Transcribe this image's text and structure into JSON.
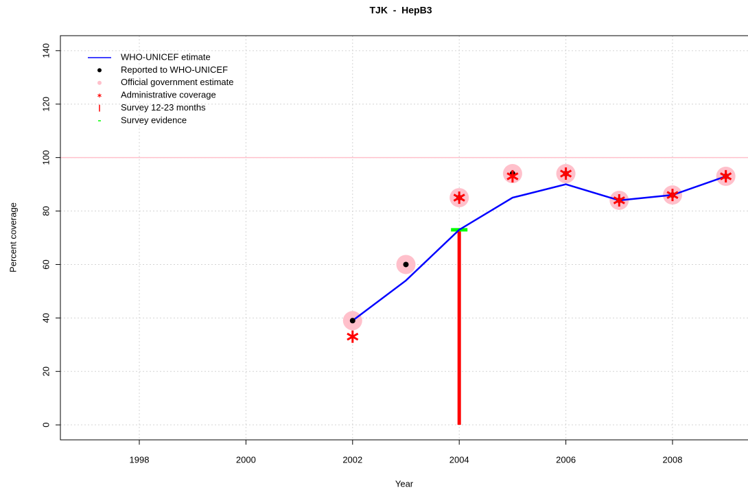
{
  "chart_data": {
    "type": "line",
    "title": "TJK  -  HepB3",
    "x_label": "Year",
    "y_label": "Percent coverage",
    "x": [
      2002,
      2003,
      2004,
      2005,
      2006,
      2007,
      2008,
      2009
    ],
    "xlim": [
      1996.52,
      2009.48
    ],
    "xticks": [
      1998,
      2000,
      2002,
      2004,
      2006,
      2008
    ],
    "ylim": [
      -5.6,
      145.6
    ],
    "yticks": [
      0,
      20,
      40,
      60,
      80,
      100,
      120,
      140
    ],
    "grid": true,
    "legend": "top-left",
    "reference_line": {
      "value": 100,
      "color": "#ffc0cb"
    },
    "series": [
      {
        "name": "Official government estimate",
        "color": "#ffc0cb",
        "mark": "circle",
        "values": [
          39,
          60,
          85,
          94,
          94,
          84,
          86,
          93
        ]
      },
      {
        "name": "Survey 12-23 months",
        "color": "#ff0000",
        "mark": "vbar",
        "values": [
          null,
          null,
          73,
          null,
          null,
          null,
          null,
          null
        ]
      },
      {
        "name": "Survey evidence",
        "color": "#00ff00",
        "mark": "dash",
        "values": [
          null,
          null,
          73,
          null,
          null,
          null,
          null,
          null
        ]
      },
      {
        "name": "WHO-UNICEF etimate",
        "color": "#0000ff",
        "mark": "line",
        "values": [
          39,
          54,
          73,
          85,
          90,
          84,
          86,
          93
        ]
      },
      {
        "name": "Reported to WHO-UNICEF",
        "color": "#000000",
        "mark": "dot",
        "values": [
          39,
          60,
          85,
          94,
          94,
          84,
          86,
          93
        ]
      },
      {
        "name": "Administrative coverage",
        "color": "#ff0000",
        "mark": "star",
        "values": [
          33,
          null,
          85,
          93,
          94,
          84,
          86,
          93
        ]
      }
    ],
    "legend_order": [
      3,
      4,
      0,
      5,
      1,
      2
    ]
  }
}
